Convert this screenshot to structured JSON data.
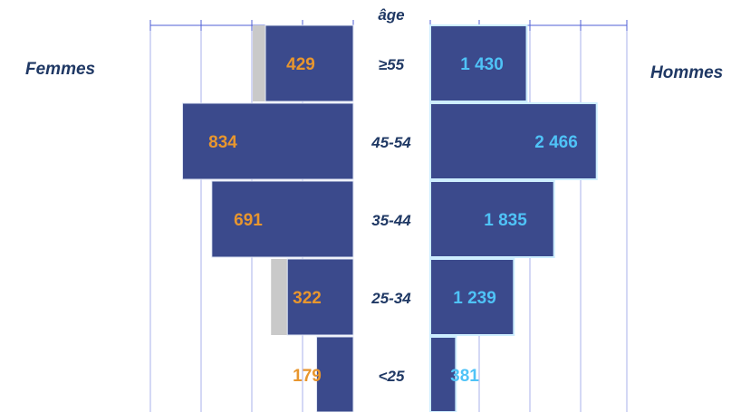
{
  "chart_data": {
    "type": "bar",
    "title": "âge",
    "categories": [
      "≥55",
      "45-54",
      "35-44",
      "25-34",
      "<25"
    ],
    "series": [
      {
        "name": "Femmes",
        "values": [
          429,
          834,
          691,
          322,
          179
        ],
        "label_color": "#e8962e"
      },
      {
        "name": "Hommes",
        "values": [
          1430,
          2466,
          1835,
          1239,
          381
        ],
        "label_color": "#4fc3f7"
      }
    ],
    "value_labels": {
      "Femmes": [
        "429",
        "834",
        "691",
        "322",
        "179"
      ],
      "Hommes": [
        "1 430",
        "2 466",
        "1 835",
        "1 239",
        "381"
      ]
    },
    "colors": {
      "bar": "#3b4a8c",
      "shadow": "#c9c9c9",
      "category": "#1f3864",
      "grid": "#4f5fd6"
    },
    "grid": true
  },
  "labels": {
    "women": "Femmes",
    "men": "Hommes"
  }
}
